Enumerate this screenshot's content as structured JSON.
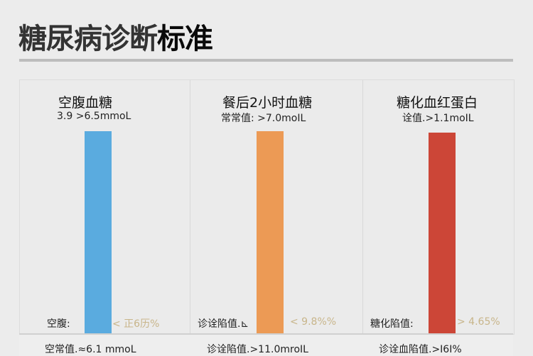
{
  "title": {
    "part1": "糖尿病诊断",
    "part2": "标准"
  },
  "columns": [
    {
      "title": "空腹血糖",
      "subtitle": "3.9 >6.5mmoL",
      "bar_color": "#5aabdf",
      "label": "空腹:",
      "value": "< 正6历%",
      "footer": "空常值.≈6.1 mmoL"
    },
    {
      "title": "餐后2小时血糖",
      "subtitle": "常常值: >7.0moIL",
      "bar_color": "#ec9a55",
      "label": "诊诠陷值.⊾",
      "value": "< 9.8%%",
      "footer": "诊诠陷值.>11.0mroIL"
    },
    {
      "title": "糖化血红蛋白",
      "subtitle": "诠值.>1.1moIL",
      "bar_color": "#cc4637",
      "label": "糖化陷值:",
      "value": "> 4.65%",
      "footer": "诊诠血陷值.>I6I%"
    }
  ]
}
